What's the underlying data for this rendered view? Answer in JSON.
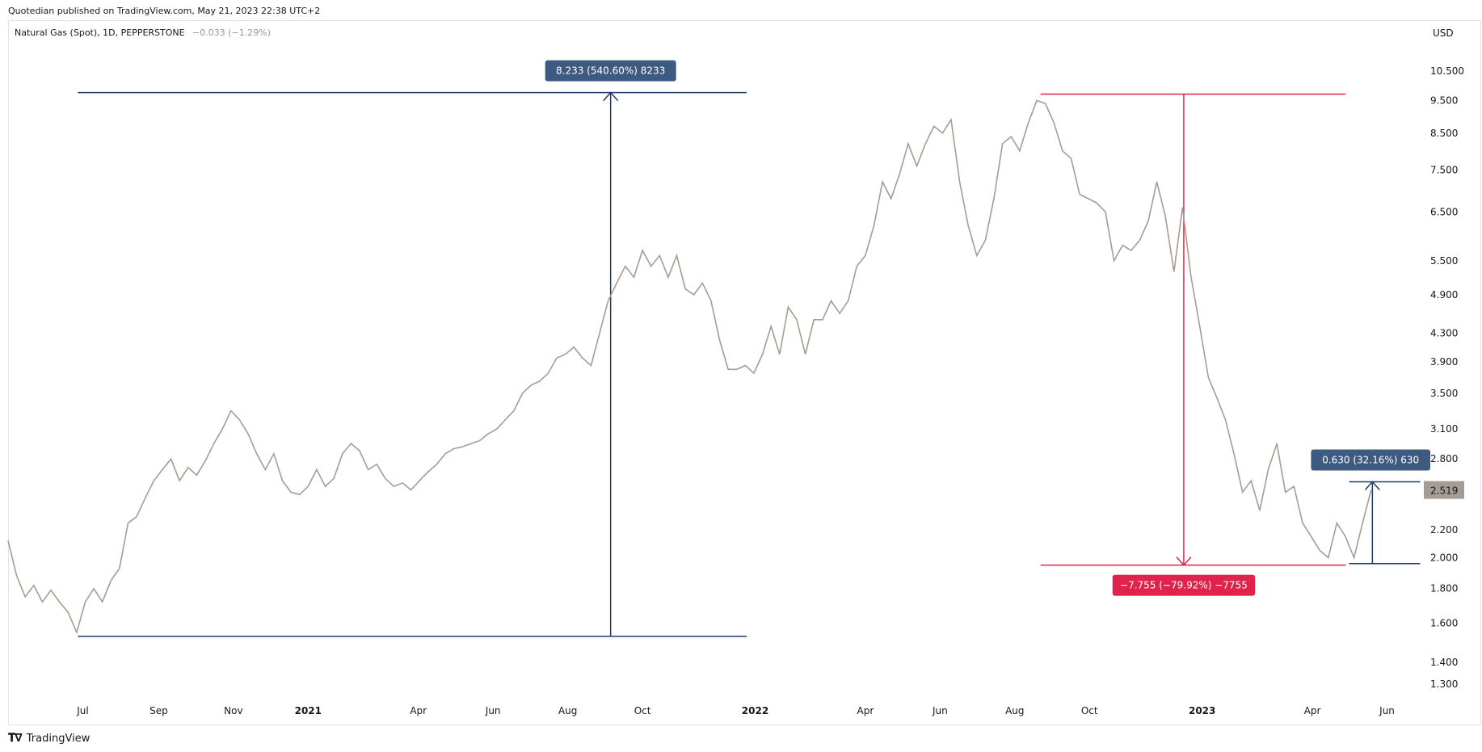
{
  "header": {
    "published": "Quotedian published on TradingView.com, May 21, 2023 22:38 UTC+2"
  },
  "symbol": {
    "name": "Natural Gas (Spot), 1D, PEPPERSTONE",
    "change": "−0.033 (−1.29%)"
  },
  "currency": "USD",
  "footer": {
    "logo_text": "TradingView",
    "logo_icon": "tradingview-logo-icon"
  },
  "colors": {
    "price_line": "#a69c93",
    "blue_measure": "#1f3b66",
    "blue_label_bg": "#3d5a80",
    "red_measure": "#e0234a",
    "last_price_bg": "#a69c93"
  },
  "chart_data": {
    "type": "line",
    "title": "Natural Gas (Spot), 1D, PEPPERSTONE",
    "scale": "log",
    "ylim": [
      1.22,
      11.5
    ],
    "y_ticks": [
      "10.500",
      "9.500",
      "8.500",
      "7.500",
      "6.500",
      "5.500",
      "4.900",
      "4.300",
      "3.900",
      "3.500",
      "3.100",
      "2.800",
      "2.200",
      "2.000",
      "1.800",
      "1.600",
      "1.400",
      "1.300"
    ],
    "x_ticks": [
      {
        "label": "Jul",
        "date": "2020-07-01",
        "year": false
      },
      {
        "label": "Sep",
        "date": "2020-09-01",
        "year": false
      },
      {
        "label": "Nov",
        "date": "2020-11-01",
        "year": false
      },
      {
        "label": "2021",
        "date": "2021-01-01",
        "year": true
      },
      {
        "label": "Apr",
        "date": "2021-04-01",
        "year": false
      },
      {
        "label": "Jun",
        "date": "2021-06-01",
        "year": false
      },
      {
        "label": "Aug",
        "date": "2021-08-01",
        "year": false
      },
      {
        "label": "Oct",
        "date": "2021-10-01",
        "year": false
      },
      {
        "label": "2022",
        "date": "2022-01-01",
        "year": true
      },
      {
        "label": "Apr",
        "date": "2022-04-01",
        "year": false
      },
      {
        "label": "Jun",
        "date": "2022-06-01",
        "year": false
      },
      {
        "label": "Aug",
        "date": "2022-08-01",
        "year": false
      },
      {
        "label": "Oct",
        "date": "2022-10-01",
        "year": false
      },
      {
        "label": "2023",
        "date": "2023-01-01",
        "year": true
      },
      {
        "label": "Apr",
        "date": "2023-04-01",
        "year": false
      },
      {
        "label": "Jun",
        "date": "2023-06-01",
        "year": false
      }
    ],
    "x_start": "2020-05-01",
    "x_end": "2023-07-01",
    "series": [
      {
        "points": [
          [
            "2020-05-01",
            2.12
          ],
          [
            "2020-05-08",
            1.88
          ],
          [
            "2020-05-15",
            1.75
          ],
          [
            "2020-05-22",
            1.82
          ],
          [
            "2020-05-29",
            1.72
          ],
          [
            "2020-06-05",
            1.79
          ],
          [
            "2020-06-12",
            1.72
          ],
          [
            "2020-06-19",
            1.66
          ],
          [
            "2020-06-26",
            1.55
          ],
          [
            "2020-07-03",
            1.72
          ],
          [
            "2020-07-10",
            1.8
          ],
          [
            "2020-07-17",
            1.72
          ],
          [
            "2020-07-24",
            1.85
          ],
          [
            "2020-07-31",
            1.93
          ],
          [
            "2020-08-07",
            2.25
          ],
          [
            "2020-08-14",
            2.3
          ],
          [
            "2020-08-21",
            2.45
          ],
          [
            "2020-08-28",
            2.6
          ],
          [
            "2020-09-04",
            2.7
          ],
          [
            "2020-09-11",
            2.8
          ],
          [
            "2020-09-18",
            2.6
          ],
          [
            "2020-09-25",
            2.72
          ],
          [
            "2020-10-02",
            2.65
          ],
          [
            "2020-10-09",
            2.78
          ],
          [
            "2020-10-16",
            2.95
          ],
          [
            "2020-10-23",
            3.1
          ],
          [
            "2020-10-30",
            3.3
          ],
          [
            "2020-11-06",
            3.2
          ],
          [
            "2020-11-13",
            3.05
          ],
          [
            "2020-11-20",
            2.85
          ],
          [
            "2020-11-27",
            2.7
          ],
          [
            "2020-12-04",
            2.85
          ],
          [
            "2020-12-11",
            2.6
          ],
          [
            "2020-12-18",
            2.5
          ],
          [
            "2020-12-25",
            2.48
          ],
          [
            "2021-01-01",
            2.55
          ],
          [
            "2021-01-08",
            2.7
          ],
          [
            "2021-01-15",
            2.55
          ],
          [
            "2021-01-22",
            2.62
          ],
          [
            "2021-01-29",
            2.85
          ],
          [
            "2021-02-05",
            2.95
          ],
          [
            "2021-02-12",
            2.88
          ],
          [
            "2021-02-19",
            2.7
          ],
          [
            "2021-02-26",
            2.75
          ],
          [
            "2021-03-05",
            2.62
          ],
          [
            "2021-03-12",
            2.55
          ],
          [
            "2021-03-19",
            2.58
          ],
          [
            "2021-03-26",
            2.52
          ],
          [
            "2021-04-02",
            2.6
          ],
          [
            "2021-04-09",
            2.68
          ],
          [
            "2021-04-16",
            2.75
          ],
          [
            "2021-04-23",
            2.85
          ],
          [
            "2021-04-30",
            2.9
          ],
          [
            "2021-05-07",
            2.92
          ],
          [
            "2021-05-14",
            2.95
          ],
          [
            "2021-05-21",
            2.98
          ],
          [
            "2021-05-28",
            3.05
          ],
          [
            "2021-06-04",
            3.1
          ],
          [
            "2021-06-11",
            3.2
          ],
          [
            "2021-06-18",
            3.3
          ],
          [
            "2021-06-25",
            3.5
          ],
          [
            "2021-07-02",
            3.6
          ],
          [
            "2021-07-09",
            3.65
          ],
          [
            "2021-07-16",
            3.75
          ],
          [
            "2021-07-23",
            3.95
          ],
          [
            "2021-07-30",
            4.0
          ],
          [
            "2021-08-06",
            4.1
          ],
          [
            "2021-08-13",
            3.95
          ],
          [
            "2021-08-20",
            3.85
          ],
          [
            "2021-08-27",
            4.3
          ],
          [
            "2021-09-03",
            4.8
          ],
          [
            "2021-09-10",
            5.1
          ],
          [
            "2021-09-17",
            5.4
          ],
          [
            "2021-09-24",
            5.2
          ],
          [
            "2021-10-01",
            5.7
          ],
          [
            "2021-10-08",
            5.4
          ],
          [
            "2021-10-15",
            5.6
          ],
          [
            "2021-10-22",
            5.2
          ],
          [
            "2021-10-29",
            5.6
          ],
          [
            "2021-11-05",
            5.0
          ],
          [
            "2021-11-12",
            4.9
          ],
          [
            "2021-11-19",
            5.1
          ],
          [
            "2021-11-26",
            4.8
          ],
          [
            "2021-12-03",
            4.2
          ],
          [
            "2021-12-10",
            3.8
          ],
          [
            "2021-12-17",
            3.8
          ],
          [
            "2021-12-24",
            3.85
          ],
          [
            "2021-12-31",
            3.75
          ],
          [
            "2022-01-07",
            4.0
          ],
          [
            "2022-01-14",
            4.4
          ],
          [
            "2022-01-21",
            4.0
          ],
          [
            "2022-01-28",
            4.7
          ],
          [
            "2022-02-04",
            4.5
          ],
          [
            "2022-02-11",
            4.0
          ],
          [
            "2022-02-18",
            4.5
          ],
          [
            "2022-02-25",
            4.5
          ],
          [
            "2022-03-04",
            4.8
          ],
          [
            "2022-03-11",
            4.6
          ],
          [
            "2022-03-18",
            4.8
          ],
          [
            "2022-03-25",
            5.4
          ],
          [
            "2022-04-01",
            5.6
          ],
          [
            "2022-04-08",
            6.2
          ],
          [
            "2022-04-15",
            7.2
          ],
          [
            "2022-04-22",
            6.8
          ],
          [
            "2022-04-29",
            7.4
          ],
          [
            "2022-05-06",
            8.2
          ],
          [
            "2022-05-13",
            7.6
          ],
          [
            "2022-05-20",
            8.2
          ],
          [
            "2022-05-27",
            8.7
          ],
          [
            "2022-06-03",
            8.5
          ],
          [
            "2022-06-10",
            8.9
          ],
          [
            "2022-06-17",
            7.2
          ],
          [
            "2022-06-24",
            6.2
          ],
          [
            "2022-07-01",
            5.6
          ],
          [
            "2022-07-08",
            5.9
          ],
          [
            "2022-07-15",
            6.8
          ],
          [
            "2022-07-22",
            8.2
          ],
          [
            "2022-07-29",
            8.4
          ],
          [
            "2022-08-05",
            8.0
          ],
          [
            "2022-08-12",
            8.8
          ],
          [
            "2022-08-19",
            9.5
          ],
          [
            "2022-08-26",
            9.4
          ],
          [
            "2022-09-02",
            8.8
          ],
          [
            "2022-09-09",
            8.0
          ],
          [
            "2022-09-16",
            7.8
          ],
          [
            "2022-09-23",
            6.9
          ],
          [
            "2022-09-30",
            6.8
          ],
          [
            "2022-10-07",
            6.7
          ],
          [
            "2022-10-14",
            6.5
          ],
          [
            "2022-10-21",
            5.5
          ],
          [
            "2022-10-28",
            5.8
          ],
          [
            "2022-11-04",
            5.7
          ],
          [
            "2022-11-11",
            5.9
          ],
          [
            "2022-11-18",
            6.3
          ],
          [
            "2022-11-25",
            7.2
          ],
          [
            "2022-12-02",
            6.4
          ],
          [
            "2022-12-09",
            5.3
          ],
          [
            "2022-12-16",
            6.6
          ],
          [
            "2022-12-23",
            5.2
          ],
          [
            "2022-12-30",
            4.4
          ],
          [
            "2023-01-06",
            3.7
          ],
          [
            "2023-01-13",
            3.45
          ],
          [
            "2023-01-20",
            3.2
          ],
          [
            "2023-01-27",
            2.85
          ],
          [
            "2023-02-03",
            2.5
          ],
          [
            "2023-02-10",
            2.6
          ],
          [
            "2023-02-17",
            2.35
          ],
          [
            "2023-02-24",
            2.7
          ],
          [
            "2023-03-03",
            2.95
          ],
          [
            "2023-03-10",
            2.5
          ],
          [
            "2023-03-17",
            2.55
          ],
          [
            "2023-03-24",
            2.25
          ],
          [
            "2023-03-31",
            2.15
          ],
          [
            "2023-04-07",
            2.05
          ],
          [
            "2023-04-14",
            2.0
          ],
          [
            "2023-04-21",
            2.25
          ],
          [
            "2023-04-28",
            2.15
          ],
          [
            "2023-05-05",
            2.0
          ],
          [
            "2023-05-12",
            2.25
          ],
          [
            "2023-05-19",
            2.52
          ]
        ]
      }
    ],
    "last_price": "2.519",
    "measurements": [
      {
        "label": "8.233 (540.60%) 8233",
        "from_date": "2020-06-27",
        "to_date": "2021-12-25",
        "low": 1.53,
        "high": 9.76,
        "arrow_date": "2021-09-05",
        "direction": "up",
        "color": "blue"
      },
      {
        "label": "−7.755 (−79.92%) −7755",
        "from_date": "2022-08-22",
        "to_date": "2023-04-28",
        "low": 1.95,
        "high": 9.71,
        "arrow_date": "2022-12-17",
        "direction": "down",
        "color": "red"
      },
      {
        "label": "0.630 (32.16%) 630",
        "from_date": "2023-05-01",
        "to_date": "2023-06-28",
        "low": 1.96,
        "high": 2.59,
        "arrow_date": "2023-05-20",
        "direction": "up",
        "color": "blue"
      }
    ]
  }
}
